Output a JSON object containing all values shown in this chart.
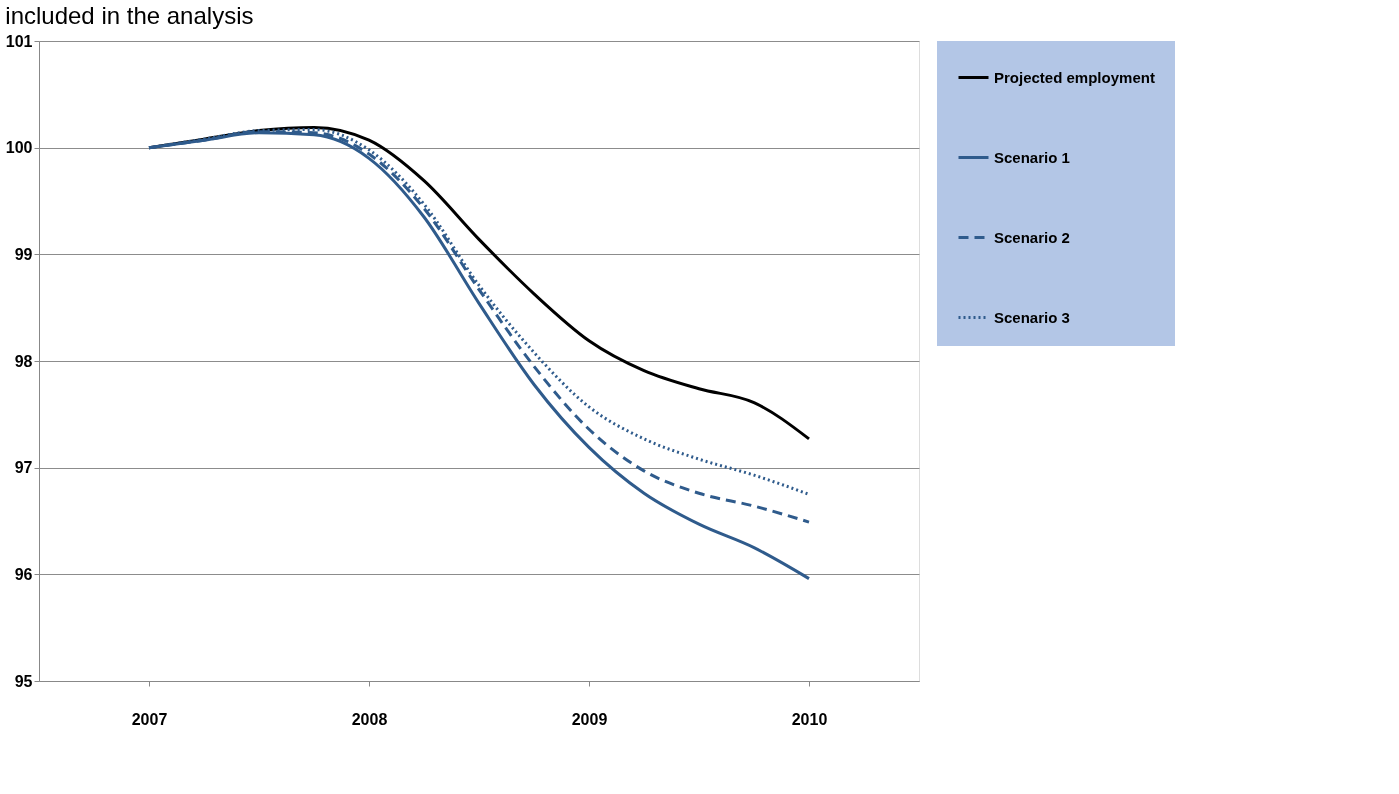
{
  "chart_data": {
    "type": "line",
    "title": "included in the analysis",
    "x": [
      2007,
      2007.25,
      2007.5,
      2007.75,
      2008,
      2008.25,
      2008.5,
      2008.75,
      2009,
      2009.25,
      2009.5,
      2009.75,
      2010
    ],
    "series": [
      {
        "name": "Projected employment",
        "color": "#000000",
        "line_style": "solid",
        "values": [
          100.0,
          100.08,
          100.16,
          100.19,
          100.07,
          99.69,
          99.14,
          98.63,
          98.19,
          97.91,
          97.74,
          97.61,
          97.27
        ]
      },
      {
        "name": "Scenario 1",
        "color": "#2f5b8c",
        "line_style": "solid",
        "values": [
          100.0,
          100.07,
          100.14,
          100.12,
          99.9,
          99.35,
          98.54,
          97.78,
          97.19,
          96.76,
          96.47,
          96.25,
          95.96
        ]
      },
      {
        "name": "Scenario 2",
        "color": "#2f5b8c",
        "line_style": "dashed",
        "values": [
          100.0,
          100.07,
          100.15,
          100.14,
          99.94,
          99.43,
          98.67,
          97.95,
          97.36,
          96.97,
          96.76,
          96.64,
          96.49
        ]
      },
      {
        "name": "Scenario 3",
        "color": "#2f5b8c",
        "line_style": "dotted",
        "values": [
          100.0,
          100.08,
          100.16,
          100.17,
          99.98,
          99.47,
          98.71,
          98.08,
          97.57,
          97.27,
          97.08,
          96.93,
          96.75
        ]
      }
    ],
    "xlim": [
      2006.5,
      2010.5
    ],
    "xticks": [
      2007,
      2008,
      2009,
      2010
    ],
    "ylim": [
      95,
      101
    ],
    "yticks": [
      95,
      96,
      97,
      98,
      99,
      100,
      101
    ],
    "grid": "y",
    "legend": "right",
    "marker": "none"
  }
}
